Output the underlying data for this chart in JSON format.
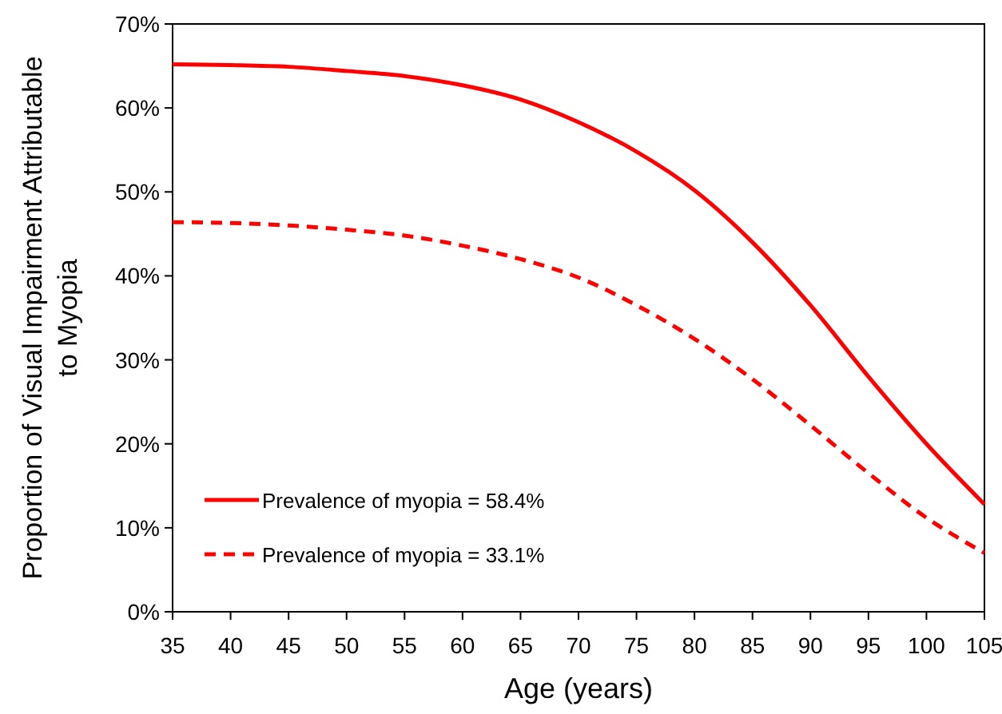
{
  "chart_data": {
    "type": "line",
    "xlabel": "Age (years)",
    "ylabel": "Proportion of Visual Impairment Attributable to Myopia",
    "x": [
      35,
      40,
      45,
      50,
      55,
      60,
      65,
      70,
      75,
      80,
      85,
      90,
      95,
      100,
      105
    ],
    "series": [
      {
        "name": "Prevalence of myopia = 58.4%",
        "color": "#ff0000",
        "line_style": "solid",
        "values": [
          65.2,
          65.1,
          64.9,
          64.4,
          63.8,
          62.7,
          61,
          58.3,
          54.8,
          50.2,
          44,
          36.5,
          28,
          20,
          12.8
        ]
      },
      {
        "name": "Prevalence of myopia = 33.1%",
        "color": "#ff0000",
        "line_style": "dashed",
        "values": [
          46.4,
          46.3,
          46,
          45.5,
          44.8,
          43.6,
          42,
          39.8,
          36.5,
          32.5,
          27.7,
          22.2,
          16.5,
          11.2,
          7
        ]
      }
    ],
    "xlim": [
      35,
      105
    ],
    "xticks": [
      35,
      40,
      45,
      50,
      55,
      60,
      65,
      70,
      75,
      80,
      85,
      90,
      95,
      100,
      105
    ],
    "ylim": [
      0,
      70
    ],
    "yticks": [
      {
        "value": 0,
        "label": "0%"
      },
      {
        "value": 10,
        "label": "10%"
      },
      {
        "value": 20,
        "label": "20%"
      },
      {
        "value": 30,
        "label": "30%"
      },
      {
        "value": 40,
        "label": "40%"
      },
      {
        "value": 50,
        "label": "50%"
      },
      {
        "value": 60,
        "label": "60%"
      },
      {
        "value": 70,
        "label": "70%"
      }
    ],
    "grid": false,
    "legend": "bottom left",
    "marker": "none"
  }
}
